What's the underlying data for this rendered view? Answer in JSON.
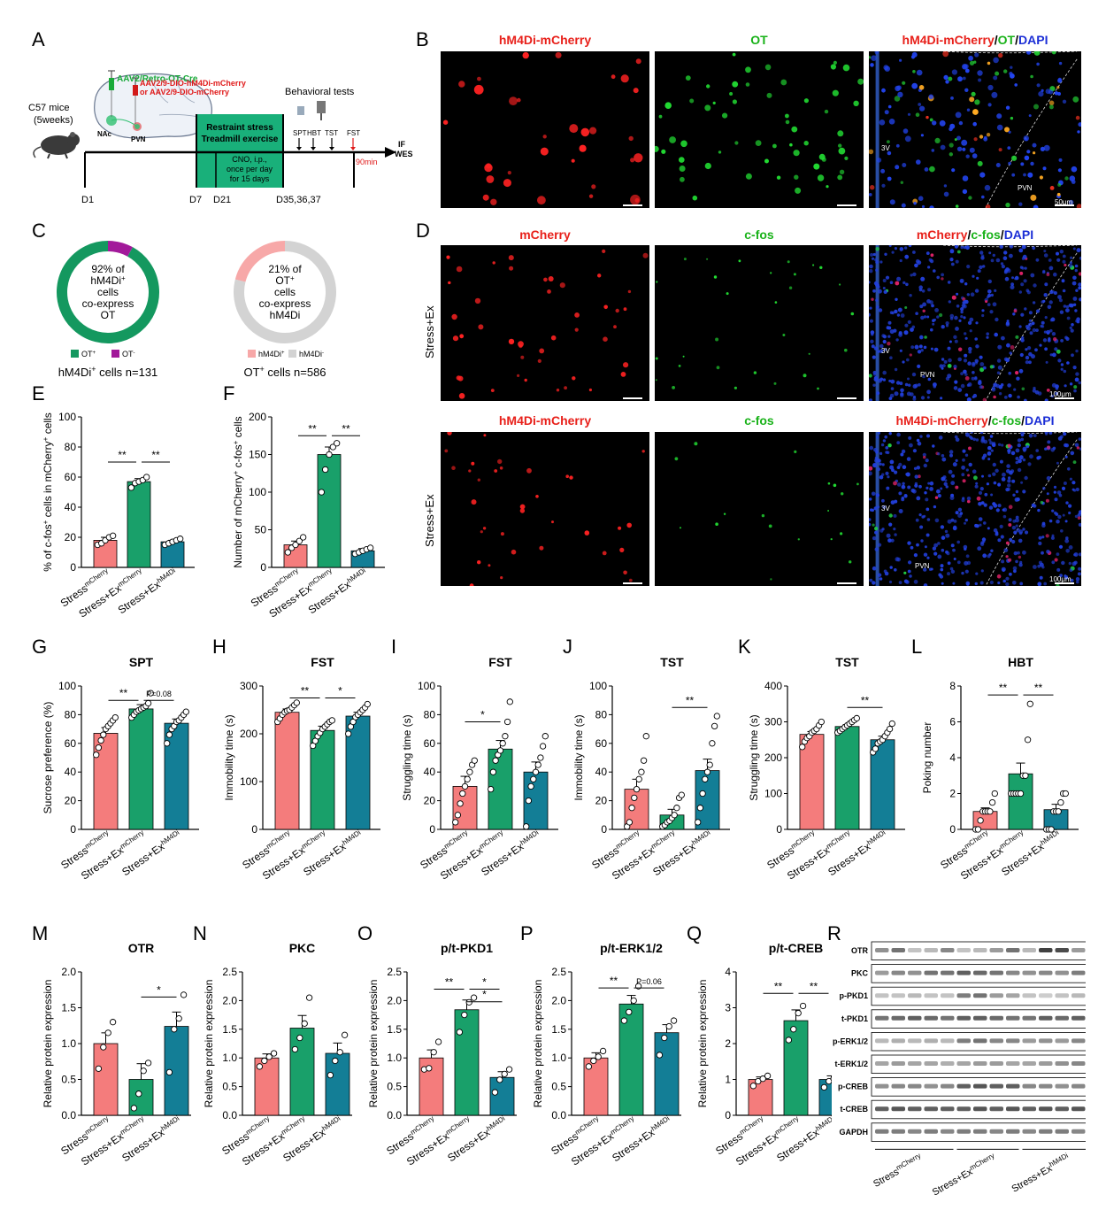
{
  "panels": {
    "A": "A",
    "B": "B",
    "C": "C",
    "D": "D",
    "E": "E",
    "F": "F",
    "G": "G",
    "H": "H",
    "I": "I",
    "J": "J",
    "K": "K",
    "L": "L",
    "M": "M",
    "N": "N",
    "O": "O",
    "P": "P",
    "Q": "Q",
    "R": "R"
  },
  "schematic": {
    "mice": "C57 mice",
    "age": "(5weeks)",
    "virus1": "AAV2/Retro-OT-Cre",
    "virus2": "AAV2/9-DIO-hM4Di-mCherry",
    "virus3": "or AAV2/9-DIO-mCherry",
    "nac": "NAc",
    "pvn": "PVN",
    "behav": "Behavioral tests",
    "box1": "Restraint stress",
    "box2": "Treadmill exercise",
    "cno1": "CNO, i.p.,",
    "cno2": "once per day",
    "cno3": "for 15 days",
    "tests": [
      "SPT",
      "HBT",
      "TST",
      "FST"
    ],
    "min": "90min",
    "if": "IF",
    "wes": "WES",
    "days": [
      "D1",
      "D7",
      "D21",
      "D35,36,37"
    ]
  },
  "micro": {
    "B_titles": [
      "hM4Di-mCherry",
      "OT"
    ],
    "B_merge": {
      "a": "hM4Di-mCherry",
      "s1": "/",
      "b": "OT",
      "s2": "/",
      "c": "DAPI"
    },
    "D_row1": [
      "mCherry",
      "c-fos"
    ],
    "D_merge1": {
      "a": "mCherry",
      "s1": "/",
      "b": "c-fos",
      "s2": "/",
      "c": "DAPI"
    },
    "D_row2": [
      "hM4Di-mCherry",
      "c-fos"
    ],
    "D_merge2": {
      "a": "hM4Di-mCherry",
      "s1": "/",
      "b": "c-fos",
      "s2": "/",
      "c": "DAPI"
    },
    "row_label": "Stress+Ex",
    "v3": "3V",
    "pvn": "PVN",
    "scale50": "50μm",
    "scale100": "100μm"
  },
  "donuts": [
    {
      "lines": [
        "92% of",
        "hM4Di",
        "cells",
        "co-express",
        "OT"
      ],
      "percent": 92,
      "colors": [
        "#14985f",
        "#a2199a"
      ],
      "legend": [
        "OT",
        "OT"
      ],
      "legend_sup": [
        "+",
        "-"
      ],
      "caption": "hM4Di",
      "caption_sup": "+",
      "caption_tail": " cells n=131"
    },
    {
      "lines": [
        "21% of",
        "OT",
        "cells",
        "co-express",
        "hM4Di"
      ],
      "percent": 21,
      "colors": [
        "#f7a8a8",
        "#d3d3d3"
      ],
      "legend": [
        "hM4Di",
        "hM4Di"
      ],
      "legend_sup": [
        "+",
        "-"
      ],
      "caption": "OT",
      "caption_sup": "+",
      "caption_tail": " cells n=586"
    }
  ],
  "groups": [
    {
      "base": "Stress",
      "sup": "mCherry",
      "color": "#f47c7c"
    },
    {
      "base": "Stress+Ex",
      "sup": "mCherry",
      "color": "#19a06a"
    },
    {
      "base": "Stress+Ex",
      "sup": "hM4Di",
      "color": "#137e96"
    }
  ],
  "chart_data": [
    {
      "id": "E",
      "type": "bar",
      "title": "",
      "ylabel": "% of c-fos+ cells in mCherry+ cells",
      "ylim": [
        0,
        100
      ],
      "ticks": [
        0,
        20,
        40,
        60,
        80,
        100
      ],
      "values": [
        18,
        57,
        17
      ],
      "errors": [
        2,
        2,
        1
      ],
      "points": [
        [
          15,
          16,
          18,
          20,
          21
        ],
        [
          53,
          56,
          57,
          58,
          60
        ],
        [
          15,
          16,
          17,
          18,
          19
        ]
      ],
      "sig": [
        {
          "a": 0,
          "b": 1,
          "label": "**",
          "level": 70
        },
        {
          "a": 1,
          "b": 2,
          "label": "**",
          "level": 70
        }
      ]
    },
    {
      "id": "F",
      "type": "bar",
      "title": "",
      "ylabel": "Number of mCherry+ c-fos+ cells",
      "ylim": [
        0,
        200
      ],
      "ticks": [
        0,
        50,
        100,
        150,
        200
      ],
      "values": [
        30,
        150,
        22
      ],
      "errors": [
        5,
        10,
        3
      ],
      "points": [
        [
          20,
          26,
          30,
          35,
          40
        ],
        [
          100,
          130,
          150,
          160,
          165
        ],
        [
          18,
          20,
          22,
          24,
          26
        ]
      ],
      "sig": [
        {
          "a": 0,
          "b": 1,
          "label": "**",
          "level": 175
        },
        {
          "a": 1,
          "b": 2,
          "label": "**",
          "level": 175
        }
      ]
    },
    {
      "id": "G",
      "type": "bar",
      "title": "SPT",
      "ylabel": "Sucrose preference (%)",
      "ylim": [
        0,
        100
      ],
      "ticks": [
        0,
        20,
        40,
        60,
        80,
        100
      ],
      "values": [
        67,
        84,
        74
      ],
      "errors": [
        4,
        3,
        3
      ],
      "points": [
        [
          52,
          57,
          62,
          66,
          70,
          72,
          74,
          76,
          78
        ],
        [
          78,
          80,
          82,
          83,
          84,
          85,
          86,
          88,
          95
        ],
        [
          60,
          66,
          70,
          72,
          75,
          76,
          78,
          80,
          82
        ]
      ],
      "sig": [
        {
          "a": 0,
          "b": 1,
          "label": "**",
          "level": 90
        },
        {
          "a": 1,
          "b": 2,
          "label": "P=0.08",
          "level": 90
        }
      ]
    },
    {
      "id": "H",
      "type": "bar",
      "title": "FST",
      "ylabel": "Immobility time (s)",
      "ylim": [
        0,
        300
      ],
      "ticks": [
        0,
        100,
        200,
        300
      ],
      "values": [
        245,
        207,
        237
      ],
      "errors": [
        7,
        9,
        8
      ],
      "points": [
        [
          225,
          232,
          240,
          245,
          248,
          250,
          255,
          260,
          265
        ],
        [
          175,
          185,
          195,
          202,
          210,
          215,
          220,
          225,
          228
        ],
        [
          200,
          215,
          225,
          235,
          240,
          245,
          250,
          255,
          262
        ]
      ],
      "sig": [
        {
          "a": 0,
          "b": 1,
          "label": "**",
          "level": 275
        },
        {
          "a": 1,
          "b": 2,
          "label": "*",
          "level": 275
        }
      ]
    },
    {
      "id": "I",
      "type": "bar",
      "title": "FST",
      "ylabel": "Struggling time (s)",
      "ylim": [
        0,
        100
      ],
      "ticks": [
        0,
        20,
        40,
        60,
        80,
        100
      ],
      "values": [
        30,
        56,
        40
      ],
      "errors": [
        7,
        6,
        7
      ],
      "points": [
        [
          5,
          10,
          18,
          25,
          30,
          35,
          40,
          45,
          48
        ],
        [
          28,
          40,
          48,
          52,
          55,
          60,
          65,
          75,
          89
        ],
        [
          2,
          20,
          30,
          35,
          40,
          45,
          50,
          58,
          65
        ]
      ],
      "sig": [
        {
          "a": 0,
          "b": 1,
          "label": "*",
          "level": 75
        }
      ]
    },
    {
      "id": "J",
      "type": "bar",
      "title": "TST",
      "ylabel": "Immobility time (s)",
      "ylim": [
        0,
        100
      ],
      "ticks": [
        0,
        20,
        40,
        60,
        80,
        100
      ],
      "values": [
        28,
        10,
        41
      ],
      "errors": [
        7,
        4,
        8
      ],
      "points": [
        [
          2,
          5,
          15,
          22,
          28,
          35,
          40,
          48,
          65
        ],
        [
          2,
          3,
          5,
          6,
          8,
          10,
          15,
          22,
          24
        ],
        [
          5,
          15,
          25,
          35,
          40,
          45,
          60,
          72,
          79
        ]
      ],
      "sig": [
        {
          "a": 1,
          "b": 2,
          "label": "**",
          "level": 85
        }
      ]
    },
    {
      "id": "K",
      "type": "bar",
      "title": "TST",
      "ylabel": "Struggling time (s)",
      "ylim": [
        0,
        400
      ],
      "ticks": [
        0,
        100,
        200,
        300,
        400
      ],
      "values": [
        265,
        287,
        250
      ],
      "errors": [
        8,
        5,
        10
      ],
      "points": [
        [
          230,
          245,
          255,
          260,
          270,
          275,
          280,
          290,
          300
        ],
        [
          270,
          275,
          280,
          285,
          290,
          295,
          300,
          305,
          310
        ],
        [
          215,
          225,
          240,
          245,
          250,
          260,
          270,
          280,
          295
        ]
      ],
      "sig": [
        {
          "a": 1,
          "b": 2,
          "label": "**",
          "level": 340
        }
      ]
    },
    {
      "id": "L",
      "type": "bar",
      "title": "HBT",
      "ylabel": "Poking number",
      "ylim": [
        0,
        8
      ],
      "ticks": [
        0,
        2,
        4,
        6,
        8
      ],
      "values": [
        1.0,
        3.1,
        1.1
      ],
      "errors": [
        0.2,
        0.6,
        0.3
      ],
      "points": [
        [
          0,
          0,
          0.5,
          1,
          1,
          1,
          1,
          1.5,
          2
        ],
        [
          2,
          2,
          2,
          2,
          2,
          3,
          3,
          5,
          7
        ],
        [
          0,
          0,
          0,
          1,
          1,
          1,
          1.5,
          2,
          2
        ]
      ],
      "sig": [
        {
          "a": 0,
          "b": 1,
          "label": "**",
          "level": 7.5
        },
        {
          "a": 1,
          "b": 2,
          "label": "**",
          "level": 7.5
        }
      ]
    },
    {
      "id": "M",
      "type": "bar",
      "title": "OTR",
      "ylabel": "Relative protein expression",
      "ylim": [
        0,
        2.0
      ],
      "ticks": [
        "0.0",
        "0.5",
        "1.0",
        "1.5",
        "2.0"
      ],
      "values": [
        1.0,
        0.5,
        1.24
      ],
      "errors": [
        0.15,
        0.22,
        0.2
      ],
      "points": [
        [
          0.65,
          0.95,
          1.15,
          1.3
        ],
        [
          0.1,
          0.3,
          0.62,
          0.73
        ],
        [
          0.6,
          1.2,
          1.35,
          1.68
        ]
      ],
      "sig": [
        {
          "a": 1,
          "b": 2,
          "label": "*",
          "level": 1.65
        }
      ]
    },
    {
      "id": "N",
      "type": "bar",
      "title": "PKC",
      "ylabel": "Relative protein expression",
      "ylim": [
        0,
        2.5
      ],
      "ticks": [
        "0.0",
        "0.5",
        "1.0",
        "1.5",
        "2.0",
        "2.5"
      ],
      "values": [
        1.0,
        1.52,
        1.08
      ],
      "errors": [
        0.07,
        0.22,
        0.18
      ],
      "points": [
        [
          0.85,
          0.95,
          1.02,
          1.08
        ],
        [
          1.15,
          1.35,
          1.6,
          2.05
        ],
        [
          0.7,
          0.95,
          1.1,
          1.4
        ]
      ],
      "sig": []
    },
    {
      "id": "O",
      "type": "bar",
      "title": "p/t-PKD1",
      "ylabel": "Relative protein expression",
      "ylim": [
        0,
        2.5
      ],
      "ticks": [
        "0.0",
        "0.5",
        "1.0",
        "1.5",
        "2.0",
        "2.5"
      ],
      "values": [
        1.0,
        1.84,
        0.66
      ],
      "errors": [
        0.14,
        0.17,
        0.1
      ],
      "points": [
        [
          0.8,
          0.82,
          1.1,
          1.28
        ],
        [
          1.45,
          1.75,
          1.97,
          2.05
        ],
        [
          0.4,
          0.62,
          0.72,
          0.8
        ]
      ],
      "sig": [
        {
          "a": 0,
          "b": 1,
          "label": "**",
          "level": 2.2
        },
        {
          "a": 1,
          "b": 2,
          "label": "*",
          "level": 2.2
        },
        {
          "a": 1,
          "b": 2,
          "label": "*",
          "level": 1.98
        }
      ]
    },
    {
      "id": "P",
      "type": "bar",
      "title": "p/t-ERK1/2",
      "ylabel": "Relative protein expression",
      "ylim": [
        0,
        2.5
      ],
      "ticks": [
        "0.0",
        "0.5",
        "1.0",
        "1.5",
        "2.0",
        "2.5"
      ],
      "values": [
        1.0,
        1.94,
        1.44
      ],
      "errors": [
        0.09,
        0.15,
        0.14
      ],
      "points": [
        [
          0.85,
          0.95,
          1.02,
          1.12
        ],
        [
          1.65,
          1.8,
          2.0,
          2.25
        ],
        [
          1.05,
          1.35,
          1.55,
          1.65
        ]
      ],
      "sig": [
        {
          "a": 0,
          "b": 1,
          "label": "**",
          "level": 2.22
        },
        {
          "a": 1,
          "b": 2,
          "label": "P=0.06",
          "level": 2.22
        }
      ]
    },
    {
      "id": "Q",
      "type": "bar",
      "title": "p/t-CREB",
      "ylabel": "Relative protein expression",
      "ylim": [
        0,
        4
      ],
      "ticks": [
        "0",
        "1",
        "2",
        "3",
        "4"
      ],
      "values": [
        1.0,
        2.64,
        1.0
      ],
      "errors": [
        0.07,
        0.3,
        0.1
      ],
      "points": [
        [
          0.82,
          0.95,
          1.02,
          1.1
        ],
        [
          2.1,
          2.4,
          2.85,
          3.05
        ],
        [
          0.78,
          0.95,
          1.02,
          1.15
        ]
      ],
      "sig": [
        {
          "a": 0,
          "b": 1,
          "label": "**",
          "level": 3.4
        },
        {
          "a": 1,
          "b": 2,
          "label": "**",
          "level": 3.4
        }
      ]
    }
  ],
  "western": {
    "rows": [
      "OTR",
      "PKC",
      "p-PKD1",
      "t-PKD1",
      "p-ERK1/2",
      "t-ERK1/2",
      "p-CREB",
      "t-CREB",
      "GAPDH"
    ],
    "intensity": [
      [
        0.55,
        0.7,
        0.3,
        0.35,
        0.6,
        0.3,
        0.35,
        0.5,
        0.7,
        0.35,
        0.95,
        0.9,
        0.5,
        0.6
      ],
      [
        0.5,
        0.6,
        0.55,
        0.7,
        0.7,
        0.8,
        0.75,
        0.7,
        0.6,
        0.55,
        0.6,
        0.55,
        0.65,
        0.6
      ],
      [
        0.3,
        0.3,
        0.35,
        0.3,
        0.3,
        0.65,
        0.7,
        0.5,
        0.45,
        0.3,
        0.25,
        0.3,
        0.35,
        0.3
      ],
      [
        0.7,
        0.75,
        0.8,
        0.75,
        0.7,
        0.8,
        0.8,
        0.75,
        0.7,
        0.7,
        0.8,
        0.75,
        0.8,
        0.75
      ],
      [
        0.35,
        0.4,
        0.35,
        0.4,
        0.35,
        0.65,
        0.7,
        0.6,
        0.6,
        0.5,
        0.55,
        0.5,
        0.6,
        0.55
      ],
      [
        0.45,
        0.5,
        0.45,
        0.45,
        0.4,
        0.45,
        0.5,
        0.5,
        0.45,
        0.45,
        0.5,
        0.55,
        0.6,
        0.5
      ],
      [
        0.55,
        0.6,
        0.6,
        0.55,
        0.6,
        0.8,
        0.85,
        0.8,
        0.8,
        0.6,
        0.6,
        0.55,
        0.6,
        0.55
      ],
      [
        0.8,
        0.85,
        0.8,
        0.8,
        0.8,
        0.8,
        0.85,
        0.8,
        0.85,
        0.8,
        0.85,
        0.8,
        0.85,
        0.8
      ],
      [
        0.65,
        0.65,
        0.6,
        0.65,
        0.6,
        0.65,
        0.65,
        0.6,
        0.65,
        0.6,
        0.65,
        0.65,
        0.6,
        0.65
      ]
    ]
  }
}
